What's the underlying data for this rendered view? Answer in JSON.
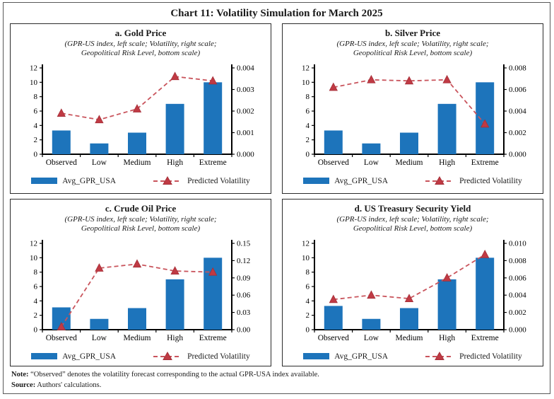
{
  "page": {
    "title": "Chart 11: Volatility Simulation for March 2025",
    "note_label": "Note:",
    "note_text": "“Observed” denotes the volatility forecast corresponding to the actual GPR-USA index available.",
    "source_label": "Source:",
    "source_text": "Authors' calculations."
  },
  "colors": {
    "bar": "#1D74BB",
    "line": "#C9545C",
    "marker": "#C03A44",
    "marker_edge": "#A52F38",
    "axis": "#000000"
  },
  "chart_data": [
    {
      "id": "gold-price",
      "type": "bar+line",
      "title": "a. Gold Price",
      "subtitle1": "(GPR-US index, left scale; Volatility, right scale;",
      "subtitle2": "Geopolitical Risk Level, bottom scale)",
      "categories": [
        "Observed",
        "Low",
        "Medium",
        "High",
        "Extreme"
      ],
      "bars": {
        "name": "Avg_GPR_USA",
        "values": [
          3.3,
          1.5,
          3.0,
          7.0,
          10.0
        ]
      },
      "line": {
        "name": "Predicted Volatility",
        "values": [
          0.0019,
          0.0016,
          0.0021,
          0.0036,
          0.0034
        ]
      },
      "left_axis": {
        "min": 0,
        "max": 12,
        "step": 2,
        "decimals": 0
      },
      "right_axis": {
        "min": 0,
        "max": 0.004,
        "step": 0.001,
        "decimals": 3
      }
    },
    {
      "id": "silver-price",
      "type": "bar+line",
      "title": "b. Silver Price",
      "subtitle1": "(GPR-US index, left scale; Volatility, right scale;",
      "subtitle2": "Geopolitical Risk Level, bottom scale)",
      "categories": [
        "Observed",
        "Low",
        "Medium",
        "High",
        "Extreme"
      ],
      "bars": {
        "name": "Avg_GPR_USA",
        "values": [
          3.3,
          1.5,
          3.0,
          7.0,
          10.0
        ]
      },
      "line": {
        "name": "Predicted Volatility",
        "values": [
          0.0062,
          0.0069,
          0.0068,
          0.0069,
          0.0028
        ]
      },
      "left_axis": {
        "min": 0,
        "max": 12,
        "step": 2,
        "decimals": 0
      },
      "right_axis": {
        "min": 0,
        "max": 0.008,
        "step": 0.002,
        "decimals": 3
      }
    },
    {
      "id": "crude-oil-price",
      "type": "bar+line",
      "title": "c. Crude Oil Price",
      "subtitle1": "(GPR-US index, left scale; Volatility, right scale;",
      "subtitle2": "Geopolitical Risk Level, bottom scale)",
      "categories": [
        "Observed",
        "Low",
        "Medium",
        "High",
        "Extreme"
      ],
      "bars": {
        "name": "Avg_GPR_USA",
        "values": [
          3.1,
          1.5,
          3.0,
          7.0,
          10.0
        ]
      },
      "line": {
        "name": "Predicted Volatility",
        "values": [
          0.005,
          0.107,
          0.114,
          0.102,
          0.1
        ]
      },
      "left_axis": {
        "min": 0,
        "max": 12,
        "step": 2,
        "decimals": 0
      },
      "right_axis": {
        "min": 0,
        "max": 0.15,
        "step": 0.03,
        "decimals": 2
      }
    },
    {
      "id": "us-treasury-security-yield",
      "type": "bar+line",
      "title": "d. US Treasury Security Yield",
      "subtitle1": "(GPR-US index, left scale; Volatility, right scale;",
      "subtitle2": "Geopolitical Risk Level, bottom scale)",
      "categories": [
        "Observed",
        "Low",
        "Medium",
        "High",
        "Extreme"
      ],
      "bars": {
        "name": "Avg_GPR_USA",
        "values": [
          3.3,
          1.5,
          3.0,
          7.0,
          10.0
        ]
      },
      "line": {
        "name": "Predicted Volatility",
        "values": [
          0.0035,
          0.004,
          0.0036,
          0.006,
          0.0087
        ]
      },
      "left_axis": {
        "min": 0,
        "max": 12,
        "step": 2,
        "decimals": 0
      },
      "right_axis": {
        "min": 0,
        "max": 0.01,
        "step": 0.002,
        "decimals": 3
      }
    }
  ]
}
